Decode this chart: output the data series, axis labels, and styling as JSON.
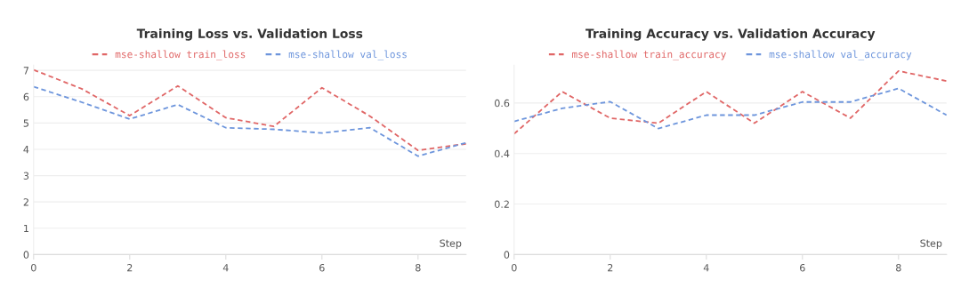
{
  "chart_data": [
    {
      "type": "line",
      "title": "Training Loss vs. Validation Loss",
      "xlabel": "Step",
      "x": [
        0,
        1,
        2,
        3,
        4,
        5,
        6,
        7,
        8,
        9
      ],
      "series": [
        {
          "name": "mse-shallow train_loss",
          "color": "#e06666",
          "values": [
            7.02,
            6.3,
            5.28,
            6.41,
            5.2,
            4.87,
            6.34,
            5.26,
            3.96,
            4.21
          ]
        },
        {
          "name": "mse-shallow val_loss",
          "color": "#6d95dc",
          "values": [
            6.38,
            5.79,
            5.15,
            5.7,
            4.82,
            4.76,
            4.62,
            4.82,
            3.74,
            4.25
          ]
        }
      ],
      "xlim": [
        0,
        9
      ],
      "xticks": [
        0,
        2,
        4,
        6,
        8
      ],
      "ylim": [
        0,
        7.2
      ],
      "yticks": [
        0,
        1,
        2,
        3,
        4,
        5,
        6,
        7
      ],
      "grid": "y",
      "legend": "top",
      "line_style": "dashed"
    },
    {
      "type": "line",
      "title": "Training Accuracy vs. Validation Accuracy",
      "xlabel": "Step",
      "x": [
        0,
        1,
        2,
        3,
        4,
        5,
        6,
        7,
        8,
        9
      ],
      "series": [
        {
          "name": "mse-shallow train_accuracy",
          "color": "#e06666",
          "values": [
            0.478,
            0.645,
            0.54,
            0.52,
            0.645,
            0.52,
            0.645,
            0.54,
            0.727,
            0.687
          ]
        },
        {
          "name": "mse-shallow val_accuracy",
          "color": "#6d95dc",
          "values": [
            0.527,
            0.579,
            0.605,
            0.499,
            0.552,
            0.552,
            0.604,
            0.604,
            0.658,
            0.552
          ]
        }
      ],
      "xlim": [
        0,
        9
      ],
      "xticks": [
        0,
        2,
        4,
        6,
        8
      ],
      "ylim": [
        0,
        0.75
      ],
      "yticks": [
        0,
        0.2,
        0.4,
        0.6
      ],
      "grid": "y",
      "legend": "top",
      "line_style": "dashed"
    }
  ]
}
